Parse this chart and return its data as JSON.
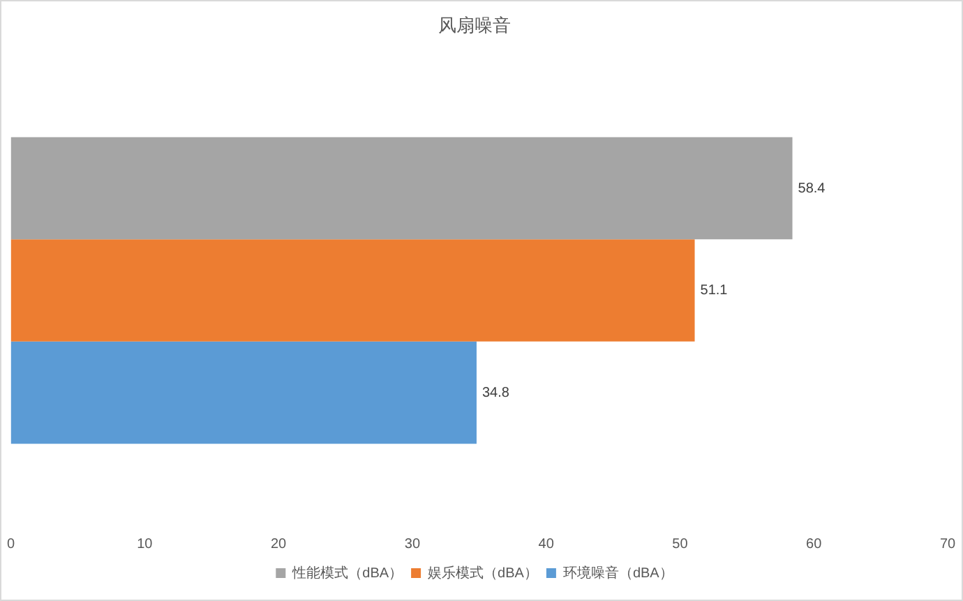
{
  "chart_data": {
    "type": "bar",
    "orientation": "horizontal",
    "title": "风扇噪音",
    "categories": [
      null
    ],
    "series": [
      {
        "name": "性能模式（dBA）",
        "color": "#a5a5a5",
        "values": [
          58.4
        ]
      },
      {
        "name": "娱乐模式（dBA）",
        "color": "#ed7d31",
        "values": [
          51.1
        ]
      },
      {
        "name": "环境噪音（dBA）",
        "color": "#5b9bd5",
        "values": [
          34.8
        ]
      }
    ],
    "xlim": [
      0,
      70
    ],
    "xticks": [
      0,
      10,
      20,
      30,
      40,
      50,
      60,
      70
    ],
    "data_labels": true,
    "legend": "bottom"
  }
}
